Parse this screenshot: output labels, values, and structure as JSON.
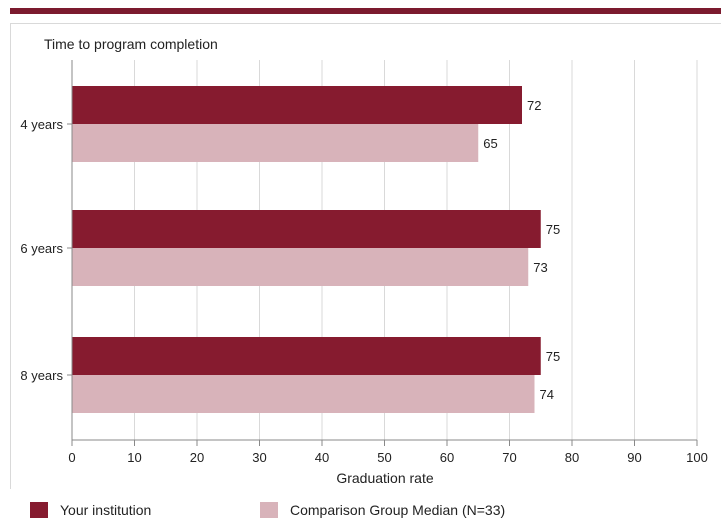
{
  "chart_data": {
    "type": "bar",
    "orientation": "horizontal",
    "title": "Time to program completion",
    "xlabel": "Graduation rate",
    "ylabel": "",
    "categories": [
      "4 years",
      "6 years",
      "8 years"
    ],
    "xlim": [
      0,
      100
    ],
    "xticks": [
      0,
      10,
      20,
      30,
      40,
      50,
      60,
      70,
      80,
      90,
      100
    ],
    "grid": true,
    "legend_position": "bottom",
    "series": [
      {
        "name": "Your institution",
        "values": [
          72,
          75,
          75
        ],
        "color": "#861b2f"
      },
      {
        "name": "Comparison Group Median (N=33)",
        "values": [
          65,
          73,
          74
        ],
        "color": "#d8b3ba"
      }
    ]
  }
}
